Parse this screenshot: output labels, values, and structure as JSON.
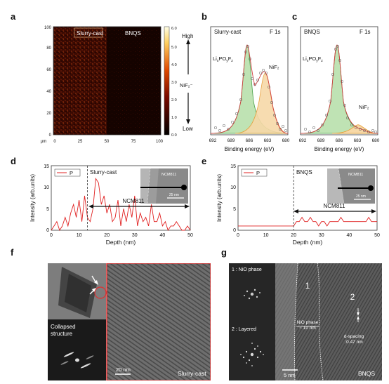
{
  "panels": {
    "a": {
      "letter": "a",
      "left_label": "Slurry-cast",
      "right_label": "BNQS",
      "x_unit": "μm",
      "x_ticks": [
        "0",
        "25",
        "50",
        "75",
        "100"
      ],
      "y_ticks": [
        "0",
        "20",
        "40",
        "60",
        "80",
        "100"
      ],
      "colorbar": {
        "ticks": [
          "0.0",
          "1.0",
          "2.0",
          "3.0",
          "4.0",
          "5.0",
          "6.0"
        ],
        "high": "High",
        "low": "Low",
        "label": "NiF₂⁻"
      }
    },
    "b": {
      "letter": "b",
      "sample": "Slurry-cast",
      "region": "F 1s",
      "peak1": "Li<sub>x</sub>PO<sub>y</sub>F<sub>z</sub>",
      "peak2": "NiF₂",
      "xlabel": "Binding energy (eV)",
      "x_ticks": [
        "692",
        "689",
        "686",
        "683",
        "680"
      ]
    },
    "c": {
      "letter": "c",
      "sample": "BNQS",
      "region": "F 1s",
      "peak1": "Li<sub>x</sub>PO<sub>y</sub>F<sub>z</sub>",
      "peak2": "NiF₂",
      "xlabel": "Binding energy (eV)",
      "x_ticks": [
        "692",
        "689",
        "686",
        "683",
        "680"
      ]
    },
    "d": {
      "letter": "d",
      "legend": "P",
      "sample": "Slurry-cast",
      "region_label": "NCM811",
      "inset_label": "NCM811",
      "scalebar": "25 nm",
      "xlabel": "Depth (nm)",
      "ylabel": "Intensity (arb.units)",
      "x_ticks": [
        "0",
        "10",
        "20",
        "30",
        "40",
        "50"
      ],
      "y_ticks": [
        "0",
        "5",
        "10",
        "15"
      ]
    },
    "e": {
      "letter": "e",
      "legend": "P",
      "sample": "BNQS",
      "region_label": "NCM811",
      "inset_label": "NCM811",
      "scalebar": "25 nm",
      "xlabel": "Depth (nm)",
      "ylabel": "Intensity (arb.units)",
      "x_ticks": [
        "0",
        "10",
        "20",
        "30",
        "40",
        "50"
      ],
      "y_ticks": [
        "0",
        "5",
        "10",
        "15"
      ]
    },
    "f": {
      "letter": "f",
      "inset_label": "Collapsed structure",
      "scalebar": "20 nm",
      "sample": "Slurry-cast"
    },
    "g": {
      "letter": "g",
      "fft1": "1 : NiO phase",
      "fft2": "2 : Layered",
      "region1": "1",
      "region2": "2",
      "nio_note": "NiO phase\n~ 10 nm",
      "dspacing": "d-spacing\n:0.47 nm",
      "scalebar": "5 nm",
      "sample": "BNQS"
    }
  },
  "chart_data": [
    {
      "type": "line",
      "title": "",
      "panel": "d",
      "xlabel": "Depth (nm)",
      "ylabel": "Intensity (arb.units)",
      "xlim": [
        0,
        50
      ],
      "ylim": [
        0,
        15
      ],
      "series": [
        {
          "name": "P",
          "x": [
            0,
            1,
            2,
            3,
            4,
            5,
            6,
            7,
            8,
            9,
            10,
            11,
            12,
            13,
            14,
            15,
            16,
            17,
            18,
            19,
            20,
            21,
            22,
            23,
            24,
            25,
            26,
            27,
            28,
            29,
            30,
            31,
            32,
            33,
            34,
            35,
            36,
            37,
            38,
            39,
            40,
            41,
            42,
            43,
            44,
            45,
            46,
            47,
            48,
            49,
            50
          ],
          "y": [
            0,
            1,
            2,
            0,
            1,
            3,
            1,
            4,
            6,
            3,
            7,
            2,
            8,
            3,
            2,
            5,
            12,
            11,
            6,
            8,
            4,
            6,
            2,
            3,
            7,
            1,
            5,
            2,
            6,
            3,
            8,
            1,
            4,
            2,
            3,
            1,
            6,
            2,
            2,
            4,
            1,
            2,
            0,
            1,
            1,
            2,
            1,
            0,
            0,
            1,
            0
          ]
        }
      ]
    },
    {
      "type": "line",
      "title": "",
      "panel": "e",
      "xlabel": "Depth (nm)",
      "ylabel": "Intensity (arb.units)",
      "xlim": [
        0,
        50
      ],
      "ylim": [
        0,
        15
      ],
      "series": [
        {
          "name": "P",
          "x": [
            0,
            1,
            2,
            3,
            4,
            5,
            6,
            7,
            8,
            9,
            10,
            11,
            12,
            13,
            14,
            15,
            16,
            17,
            18,
            19,
            20,
            21,
            22,
            23,
            24,
            25,
            26,
            27,
            28,
            29,
            30,
            31,
            32,
            33,
            34,
            35,
            36,
            37,
            38,
            39,
            40,
            41,
            42,
            43,
            44,
            45,
            46,
            47,
            48,
            49,
            50
          ],
          "y": [
            1,
            1,
            1,
            1,
            1,
            1,
            1,
            1,
            1,
            1,
            1,
            1,
            1,
            1,
            1,
            1,
            1,
            1,
            1,
            1,
            1,
            2,
            2,
            3,
            2,
            2,
            3,
            2,
            2,
            1,
            2,
            2,
            1,
            2,
            2,
            2,
            2,
            3,
            2,
            2,
            2,
            2,
            2,
            2,
            2,
            2,
            2,
            3,
            2,
            2,
            2
          ]
        }
      ]
    }
  ]
}
